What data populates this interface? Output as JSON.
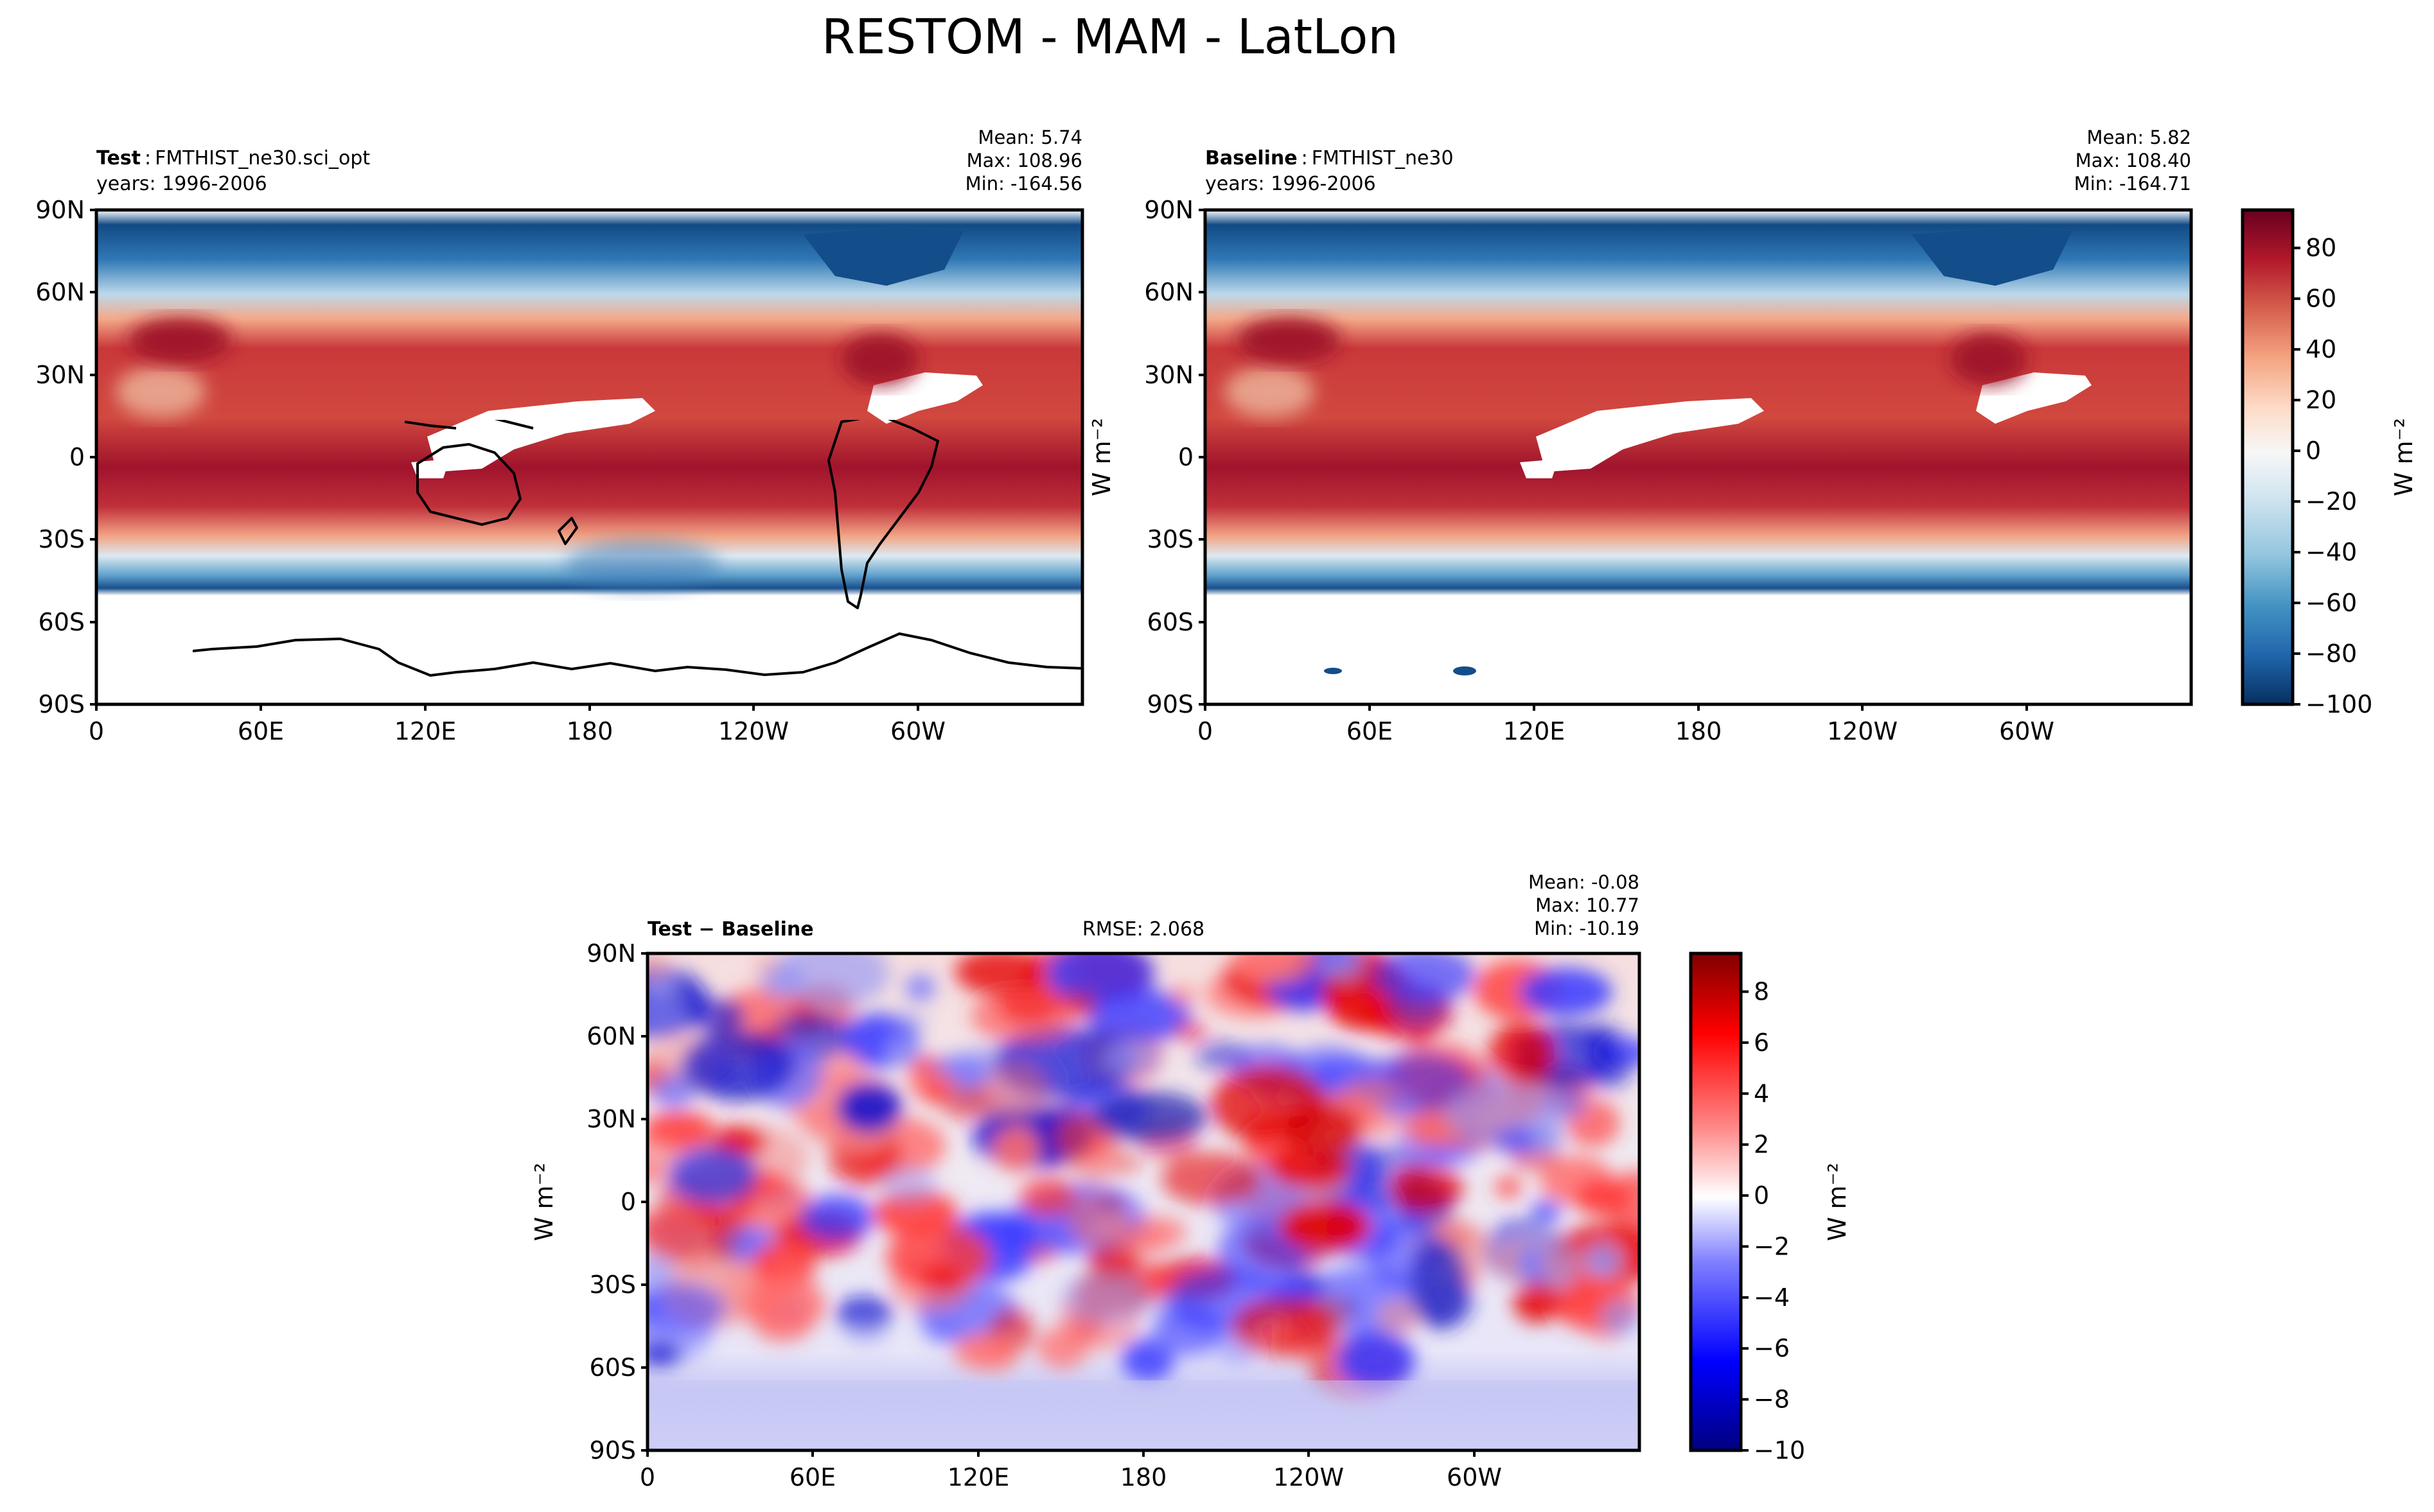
{
  "suptitle": "RESTOM - MAM - LatLon",
  "panels": {
    "test": {
      "title_bold": "Test",
      "title_sep": ":",
      "title_case": "FMTHIST_ne30.sci_opt",
      "years": "years: 1996-2006",
      "mean": "Mean:  5.74",
      "max": "Max: 108.96",
      "min": "Min: -164.56"
    },
    "baseline": {
      "title_bold": "Baseline",
      "title_sep": ":",
      "title_case": "FMTHIST_ne30",
      "years": "years: 1996-2006",
      "mean": "Mean:  5.82",
      "max": "Max: 108.40",
      "min": "Min: -164.71"
    },
    "diff": {
      "title_bold": "Test − Baseline",
      "rmse": "RMSE: 2.068",
      "mean": "Mean: -0.08",
      "max": "Max: 10.77",
      "min": "Min: -10.19"
    }
  },
  "units": {
    "top": "W m⁻²",
    "top_colorbar": "W m⁻²",
    "diff_side": "W m⁻²",
    "diff_colorbar": "W m⁻²"
  },
  "axes": {
    "lat_ticks": [
      "90N",
      "60N",
      "30N",
      "0",
      "30S",
      "60S",
      "90S"
    ],
    "lon_ticks": [
      "0",
      "60E",
      "120E",
      "180",
      "120W",
      "60W"
    ]
  },
  "colorbars": {
    "top": {
      "ticks": [
        "80",
        "60",
        "40",
        "20",
        "0",
        "−20",
        "−40",
        "−60",
        "−80",
        "−100"
      ],
      "range": [
        -100,
        95
      ],
      "colors": [
        "#053061",
        "#2166ac",
        "#4393c3",
        "#92c5de",
        "#d1e5f0",
        "#f7f7f7",
        "#fddbc7",
        "#f4a582",
        "#d6604d",
        "#b2182b",
        "#67001f"
      ]
    },
    "diff": {
      "ticks": [
        "8",
        "6",
        "4",
        "2",
        "0",
        "−2",
        "−4",
        "−6",
        "−8",
        "−10"
      ],
      "range": [
        -10,
        9.5
      ],
      "colors": [
        "#000080",
        "#0000ff",
        "#8080ff",
        "#ffffff",
        "#ff8080",
        "#ff0000",
        "#800000"
      ]
    }
  },
  "chart_data": [
    {
      "type": "heatmap",
      "title": "Test : FMTHIST_ne30.sci_opt",
      "variable": "RESTOM",
      "season": "MAM",
      "projection": "LatLon",
      "x_range_deg": [
        0,
        360
      ],
      "y_range_deg": [
        -90,
        90
      ],
      "colorbar_range": [
        -100,
        95
      ],
      "mean": 5.74,
      "max": 108.96,
      "min": -164.56
    },
    {
      "type": "heatmap",
      "title": "Baseline : FMTHIST_ne30",
      "variable": "RESTOM",
      "season": "MAM",
      "projection": "LatLon",
      "x_range_deg": [
        0,
        360
      ],
      "y_range_deg": [
        -90,
        90
      ],
      "colorbar_range": [
        -100,
        95
      ],
      "mean": 5.82,
      "max": 108.4,
      "min": -164.71
    },
    {
      "type": "heatmap",
      "title": "Test − Baseline",
      "variable": "RESTOM",
      "season": "MAM",
      "projection": "LatLon",
      "x_range_deg": [
        0,
        360
      ],
      "y_range_deg": [
        -90,
        90
      ],
      "colorbar_range": [
        -10,
        9.5
      ],
      "rmse": 2.068,
      "mean": -0.08,
      "max": 10.77,
      "min": -10.19
    }
  ]
}
